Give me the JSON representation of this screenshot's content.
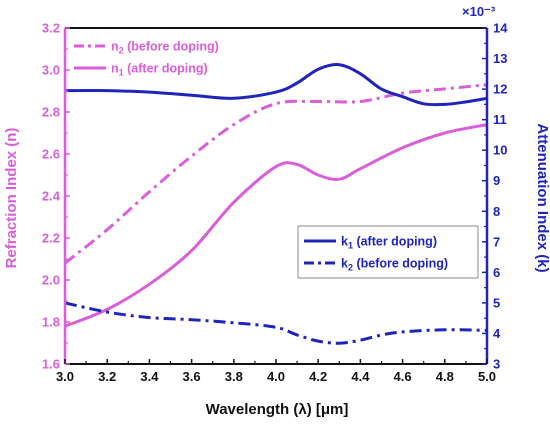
{
  "chart_data": {
    "type": "line",
    "xlabel": "Wavelength (λ) [μm]",
    "ylabel_left": "Refraction Index (n)",
    "ylabel_right": "Attenuation Index (k)",
    "right_axis_multiplier": "×10⁻³",
    "xlim": [
      3.0,
      5.0
    ],
    "ylim_left": [
      1.6,
      3.2
    ],
    "ylim_right": [
      3,
      14
    ],
    "x_ticks": [
      "3.0",
      "3.2",
      "3.4",
      "3.6",
      "3.8",
      "4.0",
      "4.2",
      "4.4",
      "4.6",
      "4.8",
      "5.0"
    ],
    "y_ticks_left": [
      "1.6",
      "1.8",
      "2.0",
      "2.2",
      "2.4",
      "2.6",
      "2.8",
      "3.0",
      "3.2"
    ],
    "y_ticks_right": [
      "3",
      "4",
      "5",
      "6",
      "7",
      "8",
      "9",
      "10",
      "11",
      "12",
      "13",
      "14"
    ],
    "grid": false,
    "colors": {
      "n": "#d95fd9",
      "k": "#1f25b8",
      "axis": "#111111"
    },
    "series": [
      {
        "name": "n₂ (before doping)",
        "label_main": "n",
        "label_sub": "2",
        "label_rest": " (before doping)",
        "axis": "left",
        "style": "dashdot",
        "color": "#d95fd9",
        "x": [
          3.0,
          3.2,
          3.4,
          3.6,
          3.8,
          4.0,
          4.2,
          4.4,
          4.6,
          4.8,
          5.0
        ],
        "y": [
          2.08,
          2.24,
          2.42,
          2.59,
          2.74,
          2.84,
          2.85,
          2.85,
          2.89,
          2.91,
          2.93
        ]
      },
      {
        "name": "n₁ (after doping)",
        "label_main": "n",
        "label_sub": "1",
        "label_rest": " (after doping)",
        "axis": "left",
        "style": "solid",
        "color": "#d95fd9",
        "x": [
          3.0,
          3.2,
          3.4,
          3.6,
          3.8,
          4.0,
          4.1,
          4.2,
          4.3,
          4.4,
          4.6,
          4.8,
          5.0
        ],
        "y": [
          1.78,
          1.86,
          1.98,
          2.14,
          2.37,
          2.54,
          2.55,
          2.5,
          2.48,
          2.53,
          2.63,
          2.7,
          2.74
        ]
      },
      {
        "name": "k₁ (after doping)",
        "label_main": "k",
        "label_sub": "1",
        "label_rest": " (after doping)",
        "axis": "right",
        "style": "solid",
        "color": "#1f25b8",
        "x": [
          3.0,
          3.2,
          3.4,
          3.6,
          3.8,
          4.0,
          4.1,
          4.2,
          4.3,
          4.4,
          4.5,
          4.6,
          4.7,
          4.8,
          4.9,
          5.0
        ],
        "y": [
          11.95,
          11.95,
          11.9,
          11.8,
          11.7,
          11.9,
          12.2,
          12.65,
          12.8,
          12.5,
          12.0,
          11.75,
          11.52,
          11.5,
          11.58,
          11.7
        ]
      },
      {
        "name": "k₂ (before doping)",
        "label_main": "k",
        "label_sub": "2",
        "label_rest": " (before doping)",
        "axis": "right",
        "style": "dashdot",
        "color": "#1f25b8",
        "x": [
          3.0,
          3.2,
          3.4,
          3.6,
          3.8,
          4.0,
          4.1,
          4.2,
          4.3,
          4.4,
          4.5,
          4.6,
          4.8,
          5.0
        ],
        "y": [
          5.0,
          4.7,
          4.52,
          4.45,
          4.35,
          4.2,
          3.95,
          3.75,
          3.68,
          3.78,
          3.95,
          4.05,
          4.12,
          4.1
        ]
      }
    ]
  }
}
